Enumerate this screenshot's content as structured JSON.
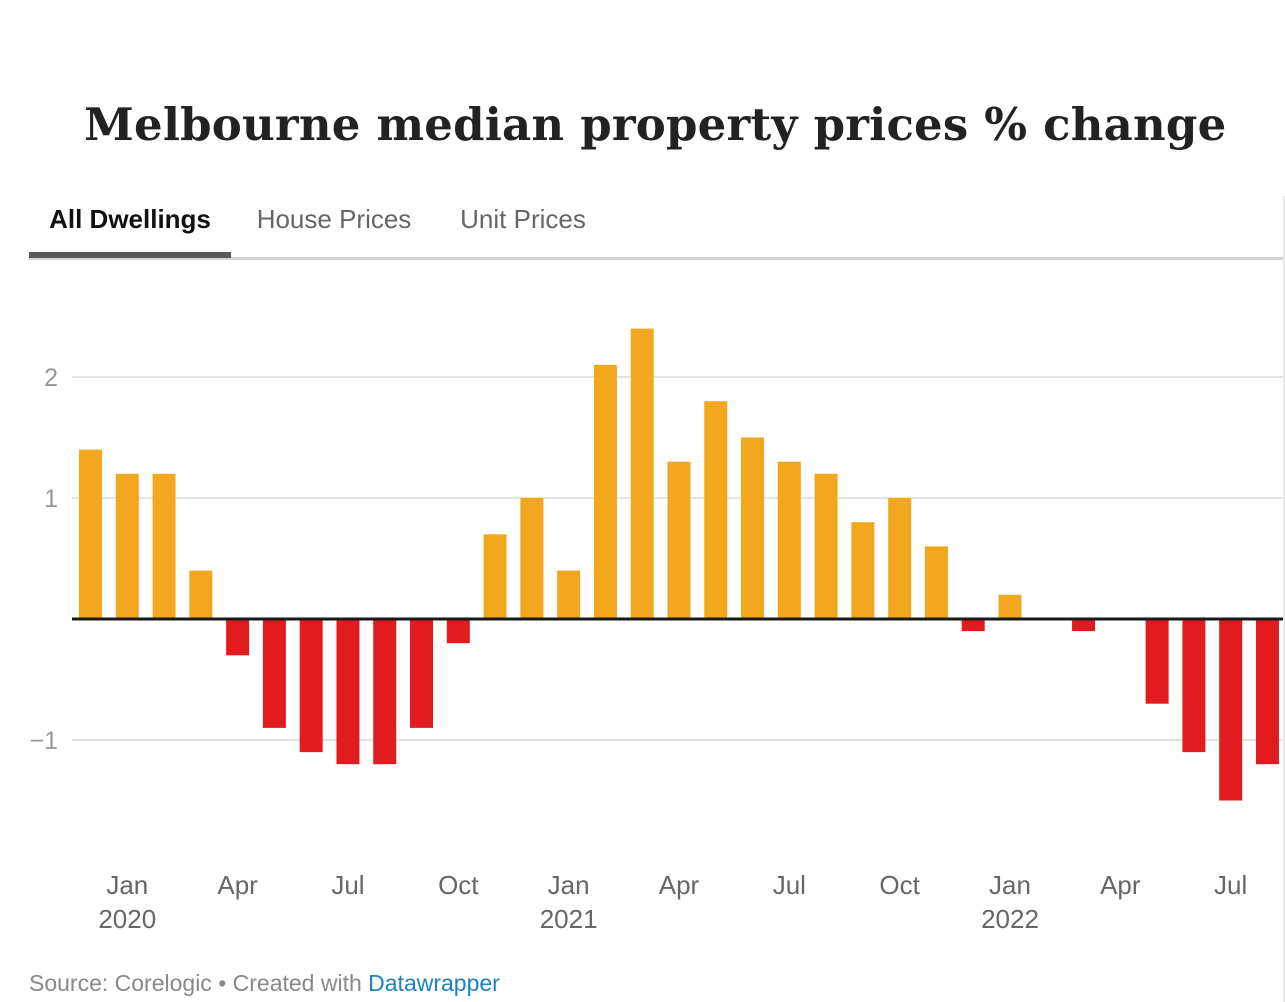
{
  "title": "Melbourne median property prices % change",
  "tabs": [
    {
      "label": "All Dwellings",
      "active": true
    },
    {
      "label": "House Prices",
      "active": false
    },
    {
      "label": "Unit Prices",
      "active": false
    }
  ],
  "footer": {
    "source_text": "Source: Corelogic • Created with ",
    "link_text": "Datawrapper"
  },
  "colors": {
    "positive": "#f2a71f",
    "negative": "#e21b1e",
    "gridline": "#e3e3e3",
    "baseline": "#1a1a1a",
    "tick_text": "#999999",
    "axis_text": "#666666"
  },
  "chart_data": {
    "type": "bar",
    "title": "Melbourne median property prices % change",
    "xlabel": "",
    "ylabel": "",
    "ylim": [
      -1.9,
      2.55
    ],
    "yticks": [
      2,
      1,
      -1
    ],
    "ytick_labels": [
      "2",
      "1",
      "−1"
    ],
    "grid": true,
    "categories": [
      "Dec 2019",
      "Jan 2020",
      "Feb 2020",
      "Mar 2020",
      "Apr 2020",
      "May 2020",
      "Jun 2020",
      "Jul 2020",
      "Aug 2020",
      "Sep 2020",
      "Oct 2020",
      "Nov 2020",
      "Dec 2020",
      "Jan 2021",
      "Feb 2021",
      "Mar 2021",
      "Apr 2021",
      "May 2021",
      "Jun 2021",
      "Jul 2021",
      "Aug 2021",
      "Sep 2021",
      "Oct 2021",
      "Nov 2021",
      "Dec 2021",
      "Jan 2022",
      "Feb 2022",
      "Mar 2022",
      "Apr 2022",
      "May 2022",
      "Jun 2022",
      "Jul 2022",
      "Aug 2022"
    ],
    "values": [
      1.4,
      1.2,
      1.2,
      0.4,
      -0.3,
      -0.9,
      -1.1,
      -1.2,
      -1.2,
      -0.9,
      -0.2,
      0.7,
      1.0,
      0.4,
      2.1,
      2.4,
      1.3,
      1.8,
      1.5,
      1.3,
      1.2,
      0.8,
      1.0,
      0.6,
      -0.1,
      0.2,
      0,
      -0.1,
      0,
      -0.7,
      -1.1,
      -1.5,
      -1.2
    ],
    "xticks": [
      {
        "index": 1,
        "label": "Jan",
        "year": "2020"
      },
      {
        "index": 4,
        "label": "Apr",
        "year": ""
      },
      {
        "index": 7,
        "label": "Jul",
        "year": ""
      },
      {
        "index": 10,
        "label": "Oct",
        "year": ""
      },
      {
        "index": 13,
        "label": "Jan",
        "year": "2021"
      },
      {
        "index": 16,
        "label": "Apr",
        "year": ""
      },
      {
        "index": 19,
        "label": "Jul",
        "year": ""
      },
      {
        "index": 22,
        "label": "Oct",
        "year": ""
      },
      {
        "index": 25,
        "label": "Jan",
        "year": "2022"
      },
      {
        "index": 28,
        "label": "Apr",
        "year": ""
      },
      {
        "index": 31,
        "label": "Jul",
        "year": ""
      }
    ],
    "legend": "none"
  }
}
